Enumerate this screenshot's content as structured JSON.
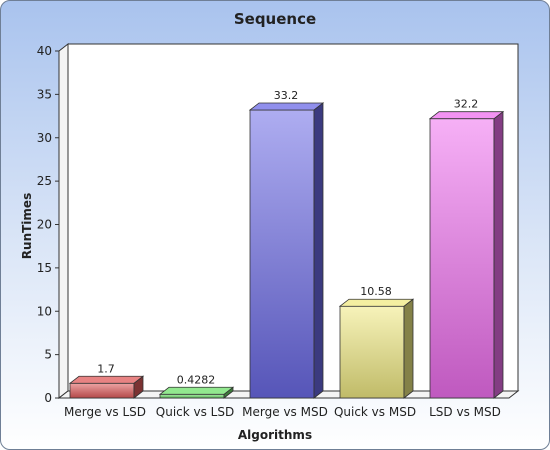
{
  "chart_data": {
    "type": "bar",
    "title": "Sequence",
    "xlabel": "Algorithms",
    "ylabel": "RunTimes",
    "categories": [
      "Merge vs LSD",
      "Quick vs LSD",
      "Merge vs MSD",
      "Quick vs MSD",
      "LSD vs MSD"
    ],
    "values": [
      1.7,
      0.4282,
      33.2,
      10.58,
      32.2
    ],
    "value_labels": [
      "1.7",
      "0.4282",
      "33.2",
      "10.58",
      "32.2"
    ],
    "bar_colors": [
      "#e05a5a",
      "#6ee06a",
      "#6b6ae6",
      "#f0ea82",
      "#ef6fef"
    ],
    "ylim": [
      0,
      40
    ],
    "yticks": [
      "0",
      "5",
      "10",
      "15",
      "20",
      "25",
      "30",
      "35",
      "40"
    ],
    "grid": false,
    "legend": "none",
    "style": "3d"
  }
}
